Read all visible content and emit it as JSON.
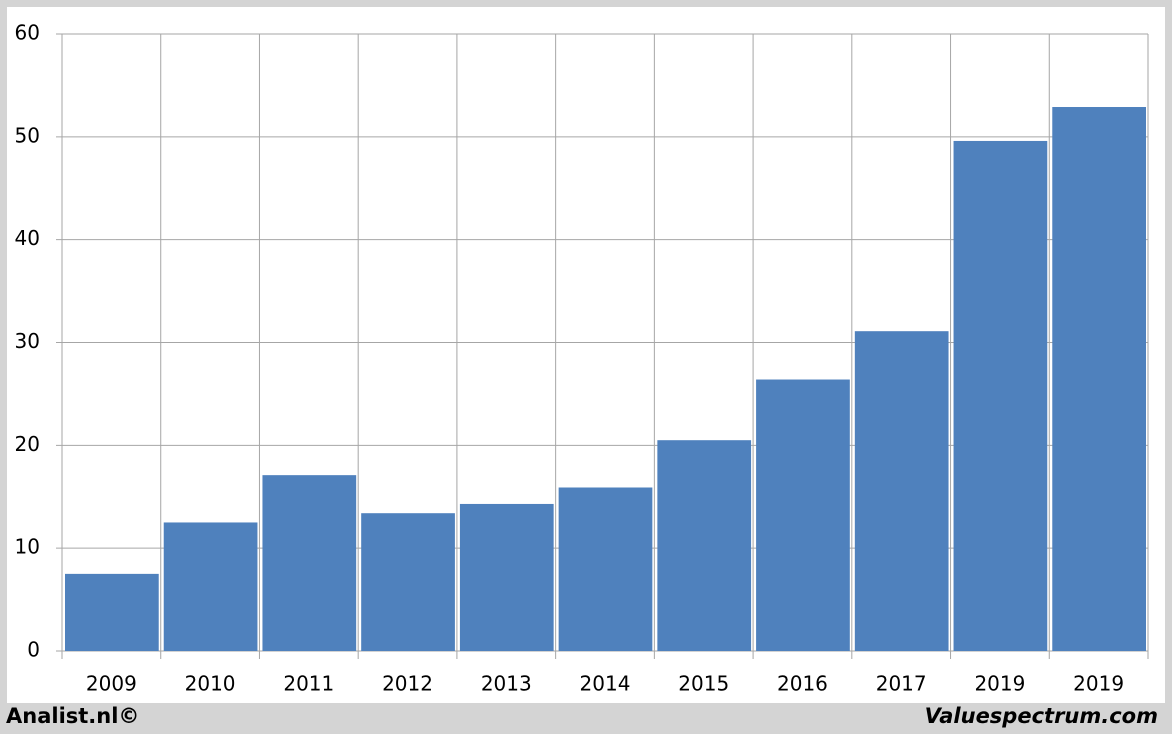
{
  "chart_data": {
    "type": "bar",
    "categories": [
      "2009",
      "2010",
      "2011",
      "2012",
      "2013",
      "2014",
      "2015",
      "2016",
      "2017",
      "2019",
      "2019"
    ],
    "values": [
      7.5,
      12.5,
      17.1,
      13.4,
      14.3,
      15.9,
      20.5,
      26.4,
      31.1,
      49.6,
      52.9
    ],
    "color": "#4f81bd",
    "ylim": [
      0,
      60
    ],
    "yticks": [
      0,
      10,
      20,
      30,
      40,
      50,
      60
    ],
    "grid": true,
    "annotations": [
      "Analist.nl©",
      "Valuespectrum.com"
    ]
  }
}
